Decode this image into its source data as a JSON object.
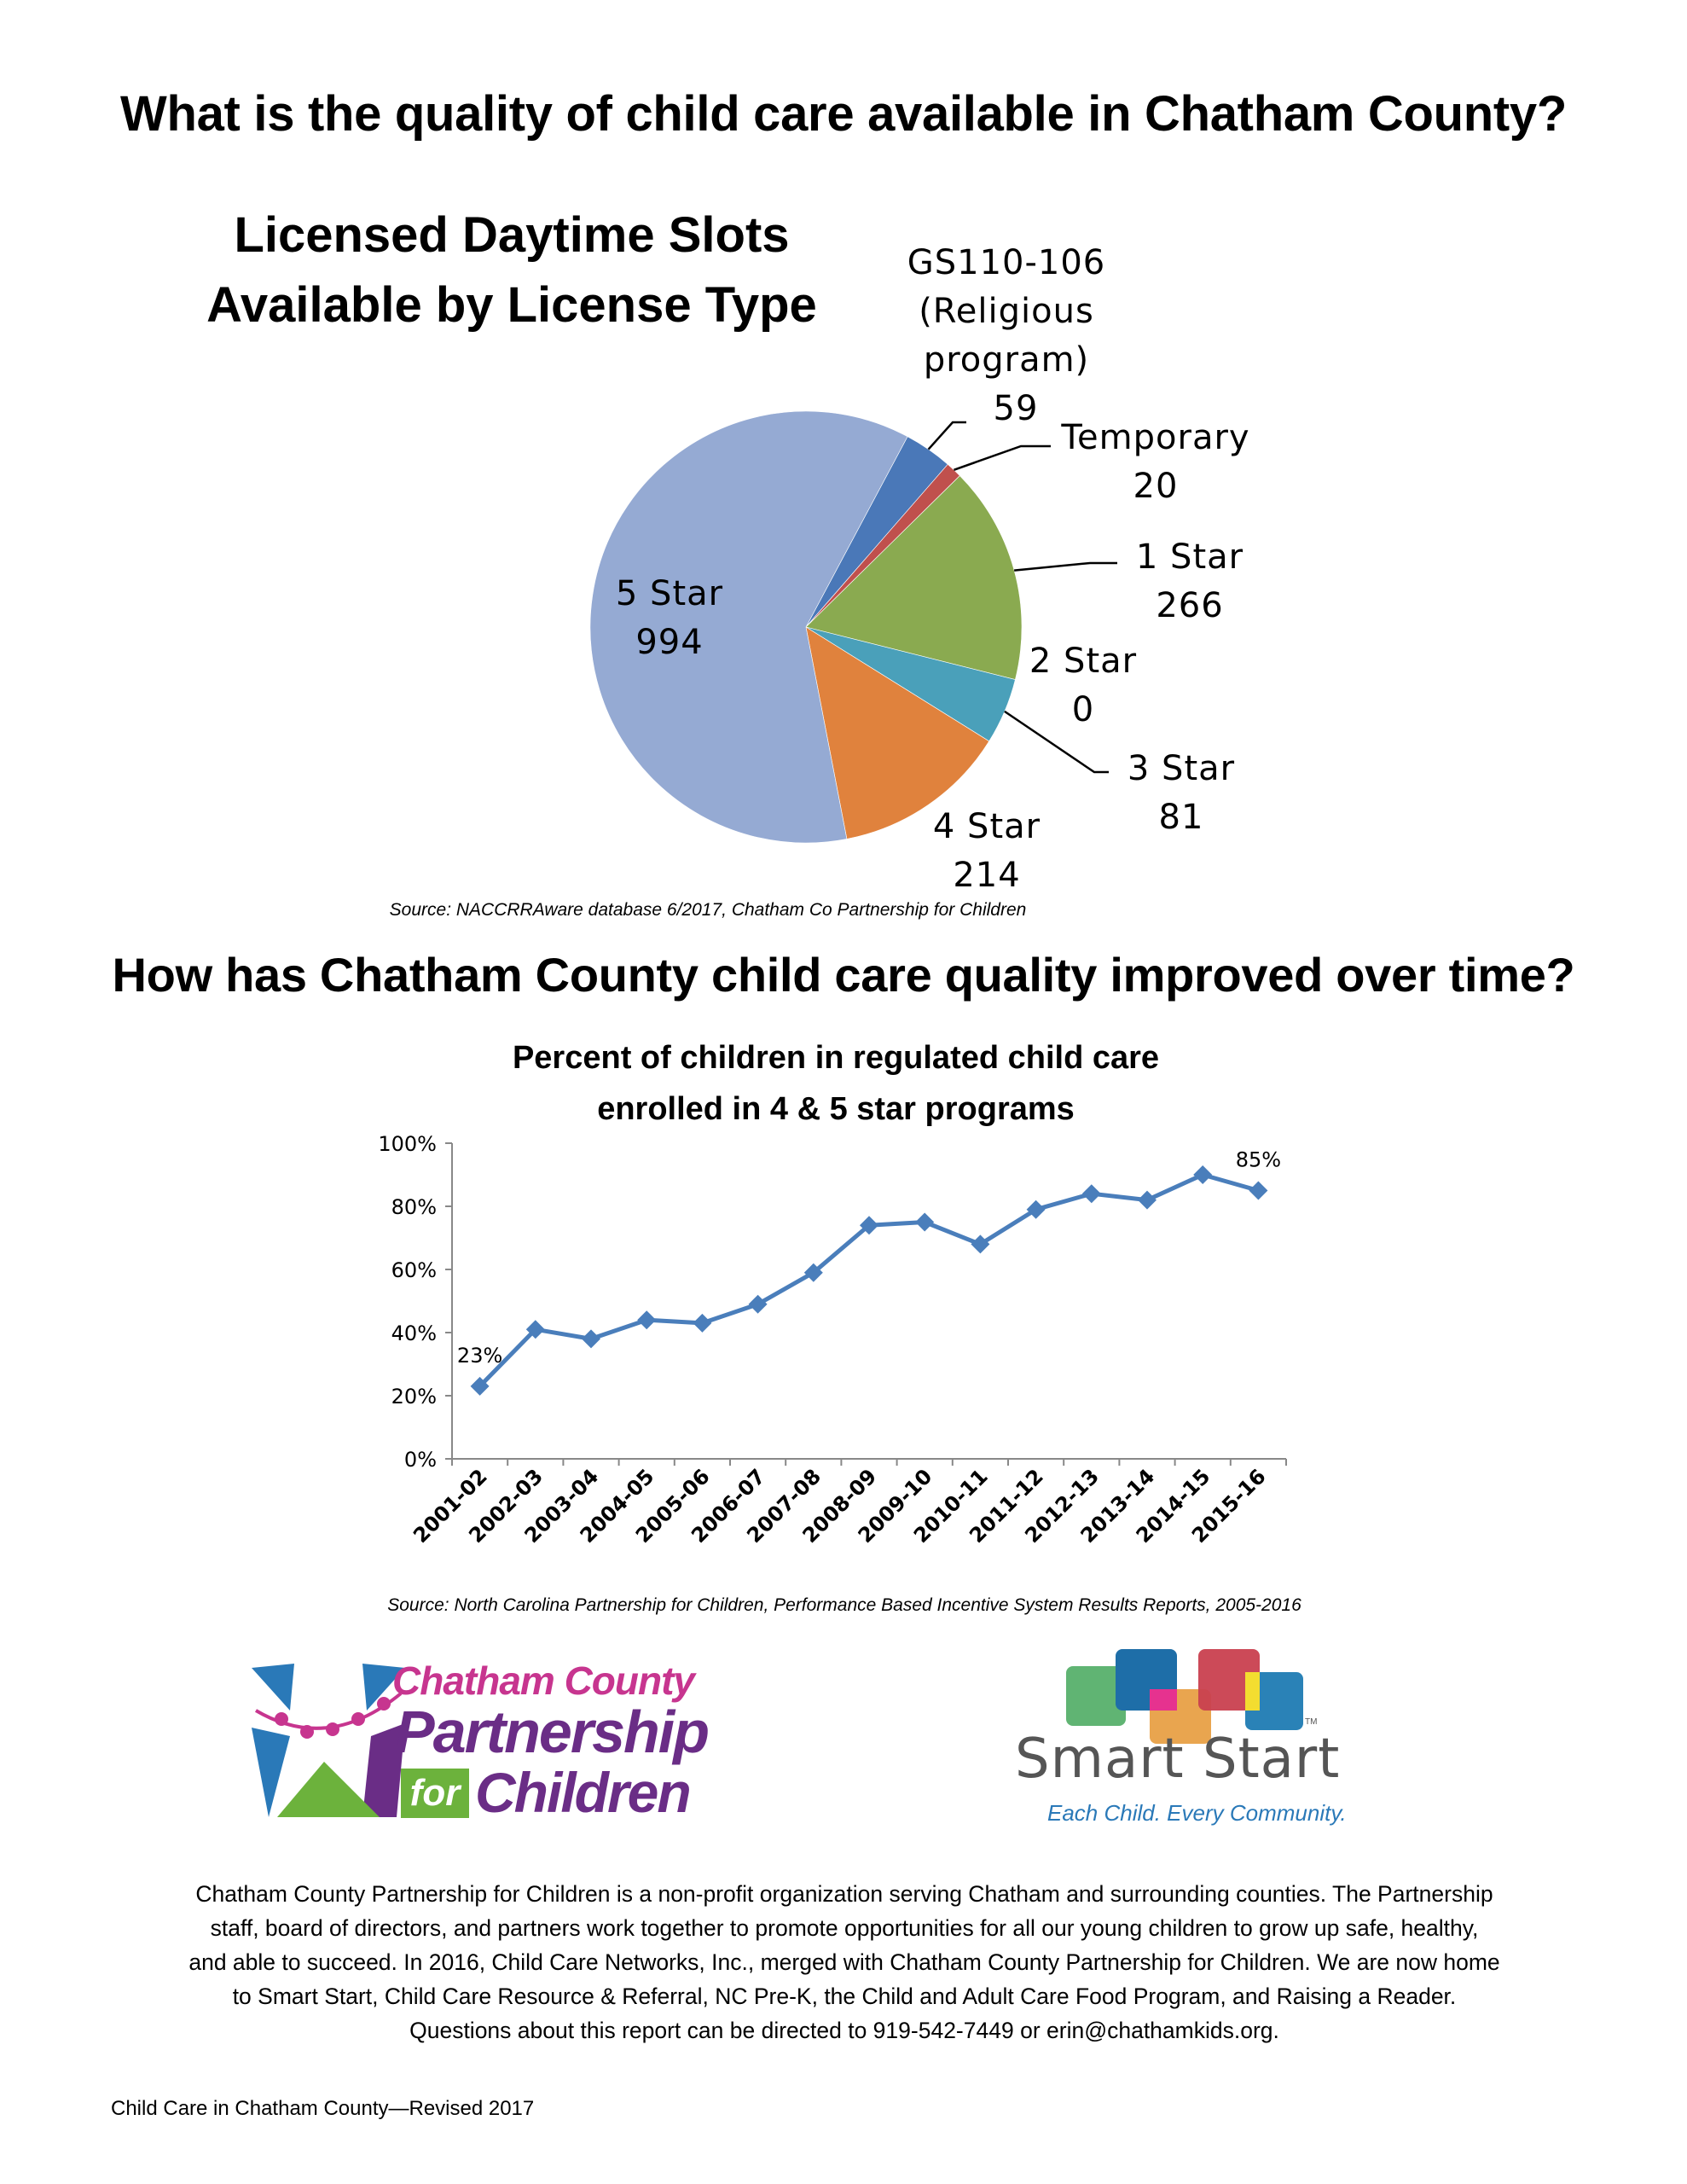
{
  "headings": {
    "quality": "What is the quality of child care available in Chatham County?",
    "improved": "How has Chatham County child care quality improved over time?"
  },
  "chart_data": [
    {
      "type": "pie",
      "title_line1": "Licensed Daytime Slots",
      "title_line2": "Available by License Type",
      "slices": [
        {
          "name": "GS110-106 (Religious program)",
          "label_lines": [
            "GS110-106",
            "(Religious",
            "program)"
          ],
          "value": 59,
          "color": "#4a78b8"
        },
        {
          "name": "Temporary",
          "label_lines": [
            "Temporary"
          ],
          "value": 20,
          "color": "#c0504d"
        },
        {
          "name": "1 Star",
          "label_lines": [
            "1 Star"
          ],
          "value": 266,
          "color": "#8aaa50"
        },
        {
          "name": "2 Star",
          "label_lines": [
            "2 Star"
          ],
          "value": 0,
          "color": "#7f63a2"
        },
        {
          "name": "3 Star",
          "label_lines": [
            "3 Star"
          ],
          "value": 81,
          "color": "#4aa0ba"
        },
        {
          "name": "4 Star",
          "label_lines": [
            "4 Star"
          ],
          "value": 214,
          "color": "#e0823d"
        },
        {
          "name": "5 Star",
          "label_lines": [
            "5 Star"
          ],
          "value": 994,
          "color": "#95aad3"
        }
      ],
      "source": "Source: NACCRRAware database 6/2017, Chatham Co Partnership for Children"
    },
    {
      "type": "line",
      "title_line1": "Percent of children in regulated child care",
      "title_line2": "enrolled in 4 & 5 star programs",
      "categories": [
        "2001-02",
        "2002-03",
        "2003-04",
        "2004-05",
        "2005-06",
        "2006-07",
        "2007-08",
        "2008-09",
        "2009-10",
        "2010-11",
        "2011-12",
        "2012-13",
        "2013-14",
        "2014-15",
        "2015-16"
      ],
      "values": [
        23,
        41,
        38,
        44,
        43,
        49,
        59,
        74,
        75,
        68,
        79,
        84,
        82,
        90,
        85
      ],
      "data_labels": [
        {
          "index": 0,
          "text": "23%"
        },
        {
          "index": 14,
          "text": "85%"
        }
      ],
      "ylim": [
        0,
        100
      ],
      "yticks": [
        "0%",
        "20%",
        "40%",
        "60%",
        "80%",
        "100%"
      ],
      "color": "#4a7ebb",
      "source": "Source: North Carolina Partnership for Children, Performance Based Incentive System Results Reports, 2005-2016"
    }
  ],
  "logos": {
    "ccpc": {
      "line1": "Chatham County",
      "line2": "Partnership",
      "line3_for": "for",
      "line3_children": "Children"
    },
    "smart_start": {
      "name": "Smart Start",
      "tagline": "Each Child. Every Community.",
      "tm": "TM"
    }
  },
  "footer": {
    "paragraph": [
      "Chatham County Partnership for Children is a non-profit organization serving Chatham and surrounding counties. The Partnership",
      "staff, board of directors, and partners work together to promote opportunities for all our young children to grow up safe, healthy,",
      "and able to succeed. In 2016, Child Care Networks, Inc., merged with Chatham County Partnership for Children. We are now home",
      "to Smart Start, Child Care Resource & Referral, NC Pre-K, the Child and Adult Care Food Program, and Raising a Reader.",
      "Questions about this report can be directed to 919-542-7449 or erin@chathamkids.org."
    ],
    "revision": "Child Care in Chatham County—Revised 2017"
  }
}
